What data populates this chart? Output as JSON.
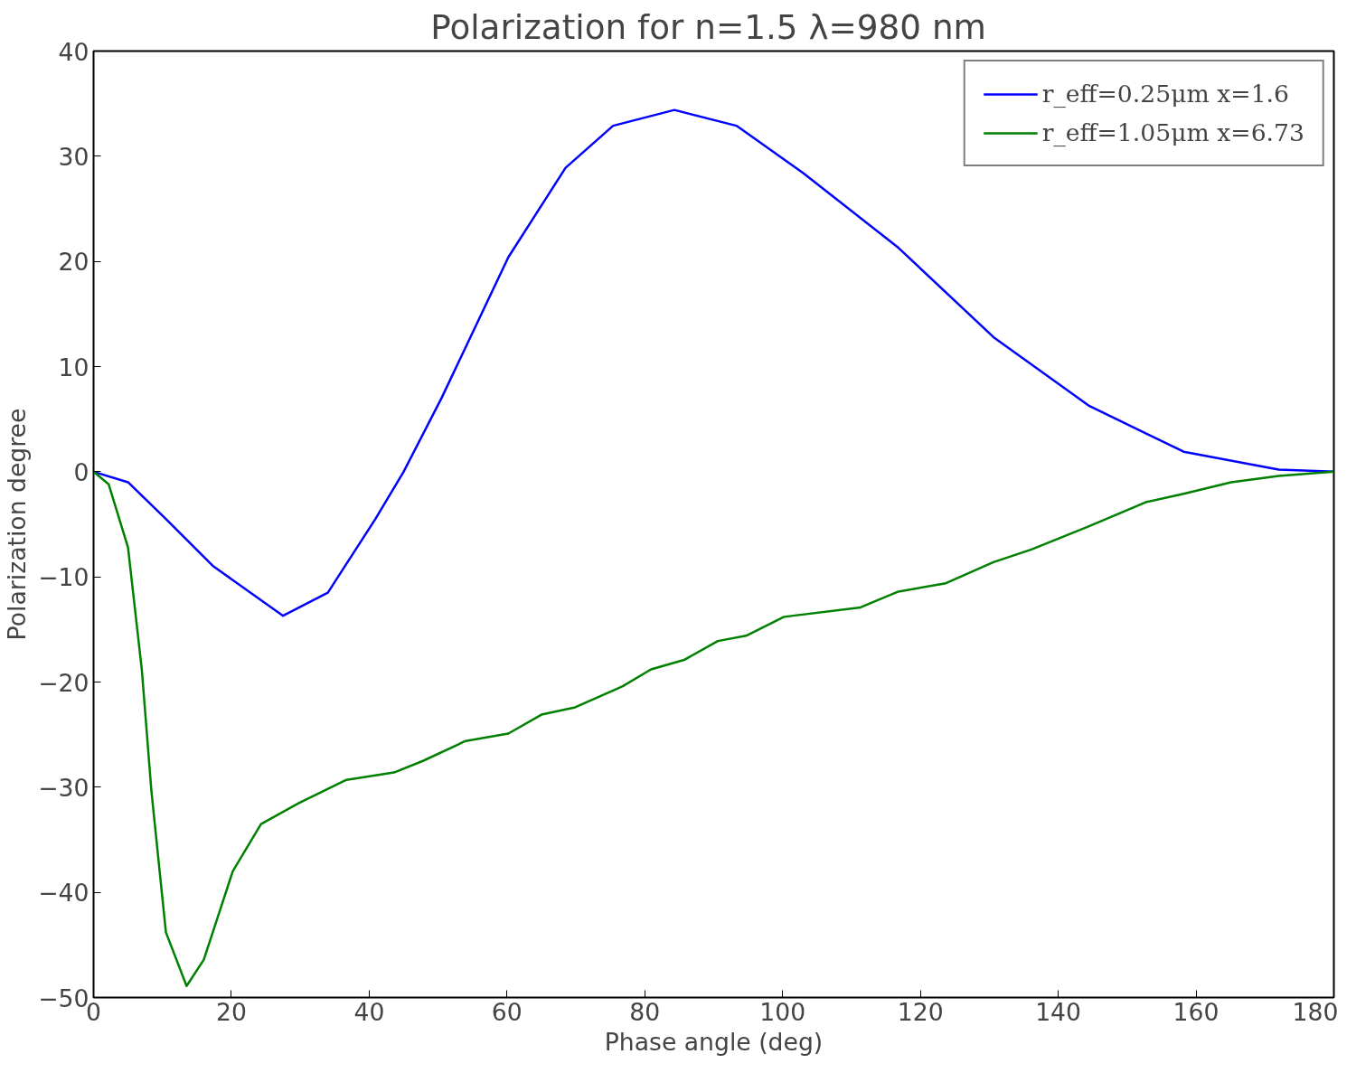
{
  "chart_data": {
    "type": "line",
    "title": "Polarization for n=1.5  λ=980 nm",
    "xlabel": "Phase angle (deg)",
    "ylabel": "Polarization degree",
    "xlim": [
      0,
      180
    ],
    "ylim": [
      -50,
      40
    ],
    "xticks": [
      0,
      20,
      40,
      60,
      80,
      100,
      120,
      140,
      160,
      180
    ],
    "yticks": [
      -50,
      -40,
      -30,
      -20,
      -10,
      0,
      10,
      20,
      30,
      40
    ],
    "grid": false,
    "legend": "top right",
    "line_style": "solid",
    "marker": "none",
    "series": [
      {
        "name": "r_eff=0.25μm x=1.6",
        "color": "#0000ff",
        "x": [
          0,
          5,
          10.5,
          17.4,
          27.5,
          34,
          40.9,
          45,
          50.5,
          60.2,
          68.5,
          75.4,
          84.3,
          93.3,
          103,
          116.8,
          130.6,
          144.4,
          158.2,
          172,
          180
        ],
        "values": [
          0,
          -1,
          -4.5,
          -9,
          -13.7,
          -11.5,
          -4.5,
          0,
          7,
          20.4,
          28.9,
          32.9,
          34.4,
          32.9,
          28.4,
          21.3,
          12.8,
          6.3,
          1.9,
          0.2,
          0
        ]
      },
      {
        "name": "r_eff=1.05μm x=6.73",
        "color": "#008000",
        "x": [
          0,
          2.2,
          5,
          7,
          8.4,
          10.5,
          13.5,
          16,
          20.2,
          24.3,
          29.8,
          36.7,
          43.6,
          47.8,
          54,
          60.2,
          65,
          69.9,
          76.8,
          80.9,
          85.7,
          90.6,
          94.7,
          100.2,
          111.3,
          116.8,
          123.7,
          130.6,
          136.1,
          144.4,
          152.7,
          158.2,
          165.1,
          172,
          180
        ],
        "values": [
          0,
          -1.2,
          -7.2,
          -18.8,
          -30.4,
          -43.8,
          -48.9,
          -46.4,
          -38,
          -33.5,
          -31.5,
          -29.3,
          -28.6,
          -27.5,
          -25.6,
          -24.9,
          -23.1,
          -22.4,
          -20.4,
          -18.8,
          -17.9,
          -16.1,
          -15.6,
          -13.8,
          -12.9,
          -11.4,
          -10.6,
          -8.6,
          -7.4,
          -5.2,
          -2.9,
          -2.1,
          -1,
          -0.4,
          0
        ]
      }
    ]
  }
}
